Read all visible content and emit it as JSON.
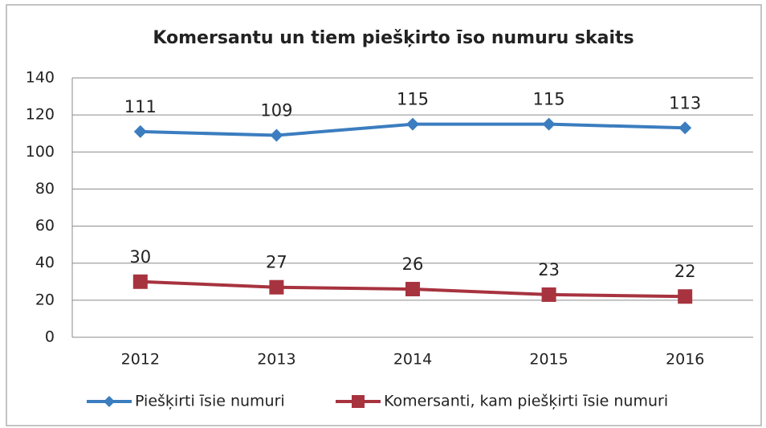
{
  "chart_data": {
    "type": "line",
    "title": "Komersantu un tiem piešķirto īso numuru skaits",
    "categories": [
      "2012",
      "2013",
      "2014",
      "2015",
      "2016"
    ],
    "series": [
      {
        "name": "Piešķirti īsie numuri",
        "color": "#3b7dbf",
        "marker": "diamond",
        "values": [
          111,
          109,
          115,
          115,
          113
        ]
      },
      {
        "name": "Komersanti, kam piešķirti īsie numuri",
        "color": "#a7333f",
        "marker": "square",
        "values": [
          30,
          27,
          26,
          23,
          22
        ]
      }
    ],
    "ylim": [
      0,
      140
    ],
    "yticks": [
      0,
      20,
      40,
      60,
      80,
      100,
      120,
      140
    ],
    "grid": true,
    "legend": "bottom"
  }
}
